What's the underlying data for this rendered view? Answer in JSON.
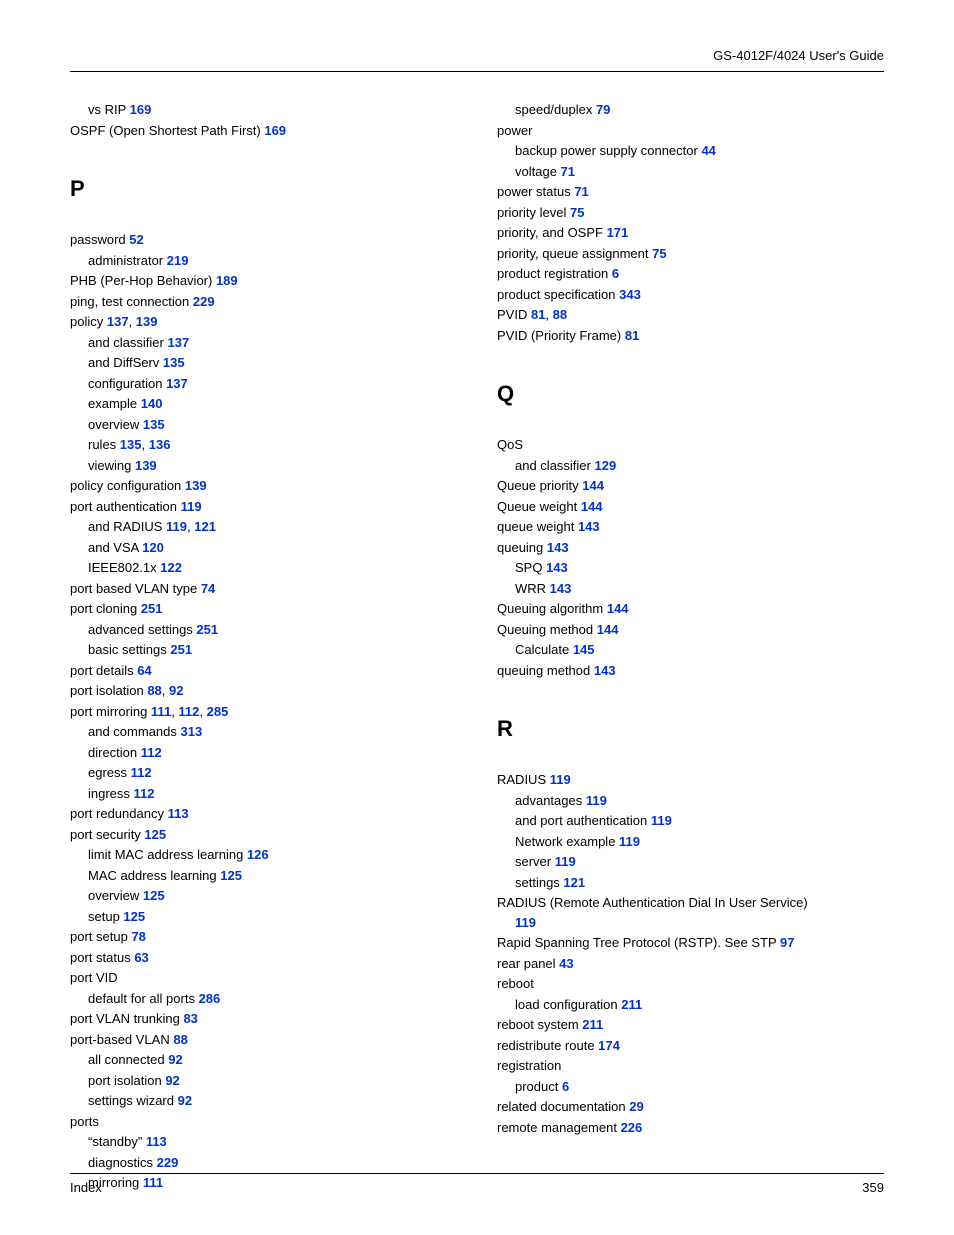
{
  "header": {
    "guide_title": "GS-4012F/4024 User's Guide"
  },
  "footer": {
    "section": "Index",
    "page": "359"
  },
  "link_color": "#0033cc",
  "text_color": "#000000",
  "font_family": "Arial",
  "font_size_pt": 10,
  "column_count": 2,
  "left": {
    "top": [
      {
        "text": "vs RIP ",
        "pages": [
          "169"
        ],
        "sub": true
      },
      {
        "text": "OSPF (Open Shortest Path First) ",
        "pages": [
          "169"
        ]
      }
    ],
    "P_letter": "P",
    "P": [
      {
        "text": "password ",
        "pages": [
          "52"
        ]
      },
      {
        "text": "administrator ",
        "pages": [
          "219"
        ],
        "sub": true
      },
      {
        "text": "PHB (Per-Hop Behavior) ",
        "pages": [
          "189"
        ]
      },
      {
        "text": "ping, test connection ",
        "pages": [
          "229"
        ]
      },
      {
        "text": "policy ",
        "pages": [
          "137",
          "139"
        ]
      },
      {
        "text": "and classifier ",
        "pages": [
          "137"
        ],
        "sub": true
      },
      {
        "text": "and DiffServ ",
        "pages": [
          "135"
        ],
        "sub": true
      },
      {
        "text": "configuration ",
        "pages": [
          "137"
        ],
        "sub": true
      },
      {
        "text": "example ",
        "pages": [
          "140"
        ],
        "sub": true
      },
      {
        "text": "overview ",
        "pages": [
          "135"
        ],
        "sub": true
      },
      {
        "text": "rules ",
        "pages": [
          "135",
          "136"
        ],
        "sub": true
      },
      {
        "text": "viewing ",
        "pages": [
          "139"
        ],
        "sub": true
      },
      {
        "text": "policy configuration ",
        "pages": [
          "139"
        ]
      },
      {
        "text": "port authentication ",
        "pages": [
          "119"
        ]
      },
      {
        "text": "and RADIUS ",
        "pages": [
          "119",
          "121"
        ],
        "sub": true
      },
      {
        "text": "and VSA ",
        "pages": [
          "120"
        ],
        "sub": true
      },
      {
        "text": "IEEE802.1x ",
        "pages": [
          "122"
        ],
        "sub": true
      },
      {
        "text": "port based VLAN type ",
        "pages": [
          "74"
        ]
      },
      {
        "text": "port cloning ",
        "pages": [
          "251"
        ]
      },
      {
        "text": "advanced settings ",
        "pages": [
          "251"
        ],
        "sub": true
      },
      {
        "text": "basic settings ",
        "pages": [
          "251"
        ],
        "sub": true
      },
      {
        "text": "port details ",
        "pages": [
          "64"
        ]
      },
      {
        "text": "port isolation ",
        "pages": [
          "88",
          "92"
        ]
      },
      {
        "text": "port mirroring ",
        "pages": [
          "111",
          "112",
          "285"
        ]
      },
      {
        "text": "and commands ",
        "pages": [
          "313"
        ],
        "sub": true
      },
      {
        "text": "direction ",
        "pages": [
          "112"
        ],
        "sub": true
      },
      {
        "text": "egress ",
        "pages": [
          "112"
        ],
        "sub": true
      },
      {
        "text": "ingress ",
        "pages": [
          "112"
        ],
        "sub": true
      },
      {
        "text": "port redundancy ",
        "pages": [
          "113"
        ]
      },
      {
        "text": "port security ",
        "pages": [
          "125"
        ]
      },
      {
        "text": "limit MAC address learning ",
        "pages": [
          "126"
        ],
        "sub": true
      },
      {
        "text": "MAC address learning ",
        "pages": [
          "125"
        ],
        "sub": true
      },
      {
        "text": "overview ",
        "pages": [
          "125"
        ],
        "sub": true
      },
      {
        "text": "setup ",
        "pages": [
          "125"
        ],
        "sub": true
      },
      {
        "text": "port setup ",
        "pages": [
          "78"
        ]
      },
      {
        "text": "port status ",
        "pages": [
          "63"
        ]
      },
      {
        "text": "port VID",
        "pages": []
      },
      {
        "text": "default for all ports ",
        "pages": [
          "286"
        ],
        "sub": true
      },
      {
        "text": "port VLAN trunking ",
        "pages": [
          "83"
        ]
      },
      {
        "text": "port-based VLAN ",
        "pages": [
          "88"
        ]
      },
      {
        "text": "all connected ",
        "pages": [
          "92"
        ],
        "sub": true
      },
      {
        "text": "port isolation ",
        "pages": [
          "92"
        ],
        "sub": true
      },
      {
        "text": "settings wizard ",
        "pages": [
          "92"
        ],
        "sub": true
      },
      {
        "text": "ports",
        "pages": []
      },
      {
        "text": "“standby” ",
        "pages": [
          "113"
        ],
        "sub": true
      },
      {
        "text": "diagnostics ",
        "pages": [
          "229"
        ],
        "sub": true
      },
      {
        "text": "mirroring ",
        "pages": [
          "111"
        ],
        "sub": true
      }
    ]
  },
  "right": {
    "top": [
      {
        "text": "speed/duplex ",
        "pages": [
          "79"
        ],
        "sub": true
      },
      {
        "text": "power",
        "pages": []
      },
      {
        "text": "backup power supply connector ",
        "pages": [
          "44"
        ],
        "sub": true
      },
      {
        "text": "voltage ",
        "pages": [
          "71"
        ],
        "sub": true
      },
      {
        "text": "power status ",
        "pages": [
          "71"
        ]
      },
      {
        "text": "priority level ",
        "pages": [
          "75"
        ]
      },
      {
        "text": "priority, and OSPF ",
        "pages": [
          "171"
        ]
      },
      {
        "text": "priority, queue assignment ",
        "pages": [
          "75"
        ]
      },
      {
        "text": "product registration ",
        "pages": [
          "6"
        ]
      },
      {
        "text": "product specification ",
        "pages": [
          "343"
        ]
      },
      {
        "text": "PVID ",
        "pages": [
          "81",
          "88"
        ]
      },
      {
        "text": "PVID (Priority Frame) ",
        "pages": [
          "81"
        ]
      }
    ],
    "Q_letter": "Q",
    "Q": [
      {
        "text": "QoS",
        "pages": []
      },
      {
        "text": "and classifier ",
        "pages": [
          "129"
        ],
        "sub": true
      },
      {
        "text": "Queue priority ",
        "pages": [
          "144"
        ]
      },
      {
        "text": "Queue weight ",
        "pages": [
          "144"
        ]
      },
      {
        "text": "queue weight ",
        "pages": [
          "143"
        ]
      },
      {
        "text": "queuing ",
        "pages": [
          "143"
        ]
      },
      {
        "text": "SPQ ",
        "pages": [
          "143"
        ],
        "sub": true
      },
      {
        "text": "WRR ",
        "pages": [
          "143"
        ],
        "sub": true
      },
      {
        "text": "Queuing algorithm ",
        "pages": [
          "144"
        ]
      },
      {
        "text": "Queuing method ",
        "pages": [
          "144"
        ]
      },
      {
        "text": "Calculate ",
        "pages": [
          "145"
        ],
        "sub": true
      },
      {
        "text": "queuing method ",
        "pages": [
          "143"
        ]
      }
    ],
    "R_letter": "R",
    "R": [
      {
        "text": "RADIUS ",
        "pages": [
          "119"
        ]
      },
      {
        "text": "advantages ",
        "pages": [
          "119"
        ],
        "sub": true
      },
      {
        "text": "and port authentication ",
        "pages": [
          "119"
        ],
        "sub": true
      },
      {
        "text": "Network example ",
        "pages": [
          "119"
        ],
        "sub": true
      },
      {
        "text": "server ",
        "pages": [
          "119"
        ],
        "sub": true
      },
      {
        "text": "settings ",
        "pages": [
          "121"
        ],
        "sub": true
      },
      {
        "text": "RADIUS (Remote Authentication Dial In User Service) ",
        "pages": [
          "119"
        ],
        "wrap_page_sub": true
      },
      {
        "text": "Rapid Spanning Tree Protocol (RSTP). See STP ",
        "pages": [
          "97"
        ]
      },
      {
        "text": "rear panel ",
        "pages": [
          "43"
        ]
      },
      {
        "text": "reboot",
        "pages": []
      },
      {
        "text": "load configuration ",
        "pages": [
          "211"
        ],
        "sub": true
      },
      {
        "text": "reboot system ",
        "pages": [
          "211"
        ]
      },
      {
        "text": "redistribute route ",
        "pages": [
          "174"
        ]
      },
      {
        "text": "registration",
        "pages": []
      },
      {
        "text": "product ",
        "pages": [
          "6"
        ],
        "sub": true
      },
      {
        "text": "related documentation ",
        "pages": [
          "29"
        ]
      },
      {
        "text": "remote management ",
        "pages": [
          "226"
        ]
      }
    ]
  }
}
